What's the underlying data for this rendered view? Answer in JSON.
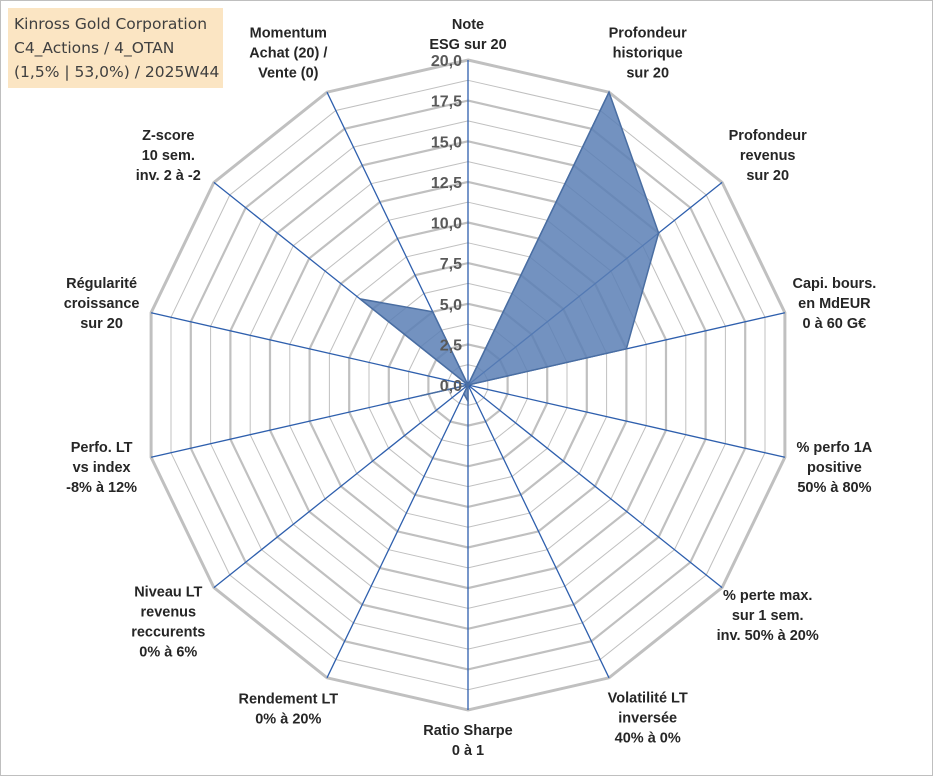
{
  "title_box": {
    "line1": "Kinross Gold Corporation",
    "line2": "C4_Actions / 4_OTAN",
    "line3": "(1,5% | 53,0%) / 2025W44",
    "background": "#fbe5c3"
  },
  "chart_data": {
    "type": "radar",
    "title": "Kinross Gold Corporation C4_Actions / 4_OTAN (1,5% | 53,0%) / 2025W44",
    "rlim": [
      0,
      20
    ],
    "ticks": [
      "0,0",
      "2,5",
      "5,0",
      "7,5",
      "10,0",
      "12,5",
      "15,0",
      "17,5",
      "20,0"
    ],
    "tick_values": [
      0,
      2.5,
      5,
      7.5,
      10,
      12.5,
      15,
      17.5,
      20
    ],
    "grid": true,
    "axes": [
      {
        "lines": [
          "Note",
          "ESG sur 20"
        ]
      },
      {
        "lines": [
          "Profondeur",
          "historique",
          "sur 20"
        ]
      },
      {
        "lines": [
          "Profondeur",
          "revenus",
          "sur 20"
        ]
      },
      {
        "lines": [
          "Capi. bours.",
          "en MdEUR",
          "0 à 60 G€"
        ]
      },
      {
        "lines": [
          "% perfo 1A",
          "positive",
          "50% à 80%"
        ]
      },
      {
        "lines": [
          "% perte max.",
          "sur 1 sem.",
          "inv. 50% à 20%"
        ]
      },
      {
        "lines": [
          "Volatilité LT",
          "inversée",
          "40% à 0%"
        ]
      },
      {
        "lines": [
          "Ratio Sharpe",
          "0 à 1"
        ]
      },
      {
        "lines": [
          "Rendement LT",
          "0% à 20%"
        ]
      },
      {
        "lines": [
          "Niveau LT",
          "revenus",
          "reccurents",
          "0% à 6%"
        ]
      },
      {
        "lines": [
          "Perfo. LT",
          "vs index",
          "-8% à 12%"
        ]
      },
      {
        "lines": [
          "Régularité",
          "croissance",
          "sur 20"
        ]
      },
      {
        "lines": [
          "Z-score",
          "10 sem.",
          "inv. 2 à -2"
        ]
      },
      {
        "lines": [
          "Momentum",
          "Achat (20) /",
          "Vente (0)"
        ]
      }
    ],
    "series": [
      {
        "values": [
          0,
          20,
          15,
          10,
          0,
          0,
          0,
          1,
          0.6,
          0,
          3,
          0,
          8.5,
          5
        ],
        "color": "#5a7fb5"
      }
    ],
    "colors": {
      "grid": "#c0c0c0",
      "spokes": "#2e5fad",
      "fill": "#5a7fb5",
      "stroke": "#4a6ea2"
    }
  }
}
